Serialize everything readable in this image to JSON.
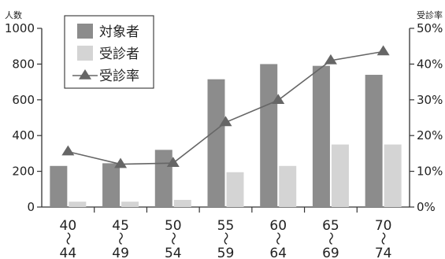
{
  "chart_data": {
    "type": "bar",
    "categories": [
      {
        "top": "40",
        "sep": "〜",
        "bottom": "44"
      },
      {
        "top": "45",
        "sep": "〜",
        "bottom": "49"
      },
      {
        "top": "50",
        "sep": "〜",
        "bottom": "54"
      },
      {
        "top": "55",
        "sep": "〜",
        "bottom": "59"
      },
      {
        "top": "60",
        "sep": "〜",
        "bottom": "64"
      },
      {
        "top": "65",
        "sep": "〜",
        "bottom": "69"
      },
      {
        "top": "70",
        "sep": "〜",
        "bottom": "74"
      }
    ],
    "series": [
      {
        "name": "対象者",
        "type": "bar",
        "axis": "left",
        "color": "#8c8c8c",
        "values": [
          230,
          245,
          320,
          715,
          800,
          790,
          740
        ]
      },
      {
        "name": "受診者",
        "type": "bar",
        "axis": "left",
        "color": "#d4d4d4",
        "values": [
          30,
          30,
          40,
          195,
          230,
          350,
          350
        ]
      },
      {
        "name": "受診率",
        "type": "line",
        "axis": "right",
        "color": "#666666",
        "marker": "triangle",
        "values": [
          15.5,
          12,
          12.3,
          23.7,
          29.9,
          41,
          43.5
        ]
      }
    ],
    "y_left": {
      "label": "人数",
      "min": 0,
      "max": 1000,
      "ticks": [
        "0",
        "200",
        "400",
        "600",
        "800",
        "1000"
      ]
    },
    "y_right": {
      "label": "受診率",
      "min": 0,
      "max": 50,
      "ticks": [
        "0%",
        "10%",
        "20%",
        "30%",
        "40%",
        "50%"
      ]
    },
    "legend": {
      "position": "top-left",
      "items": [
        "対象者",
        "受診者",
        "受診率"
      ]
    },
    "grid": false
  }
}
